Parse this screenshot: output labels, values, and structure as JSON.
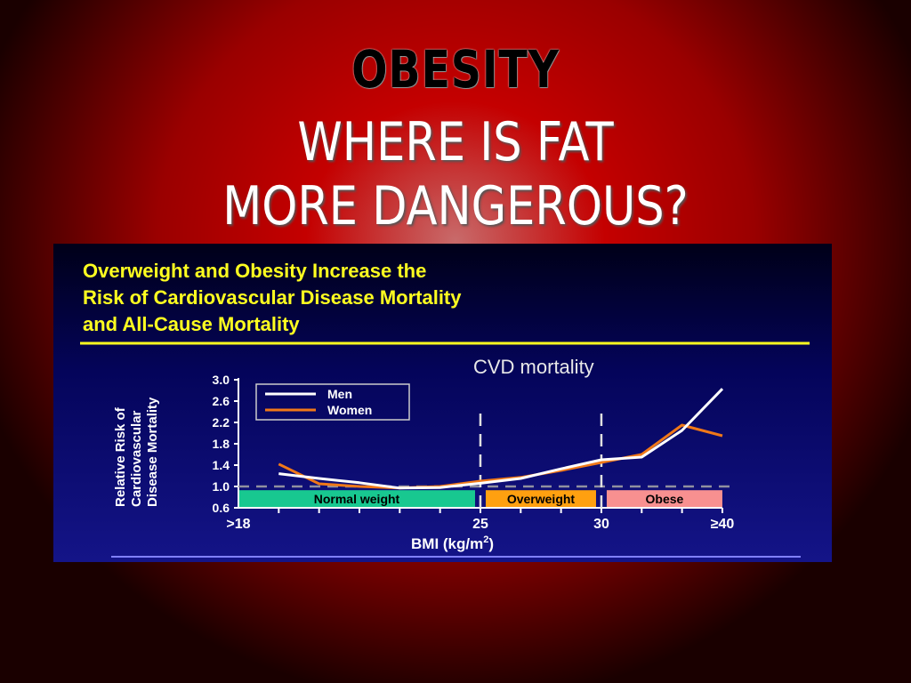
{
  "slide": {
    "title": "OBESITY",
    "subtitle_line1": "WHERE IS FAT",
    "subtitle_line2": "MORE DANGEROUS?"
  },
  "chart_data": {
    "type": "line",
    "title_lines": [
      "Overweight and Obesity Increase the",
      "Risk of Cardiovascular Disease Mortality",
      "and All-Cause Mortality"
    ],
    "subtitle": "CVD mortality",
    "xlabel": "BMI (kg/m",
    "xlabel_sup": "2",
    "xlabel_close": ")",
    "ylabel_lines": [
      "Relative Risk of",
      "Cardiovascular",
      "Disease Mortality"
    ],
    "x_ticks": [
      {
        "bin": 0,
        "label": ">18"
      },
      {
        "bin": 6,
        "label": "25"
      },
      {
        "bin": 9,
        "label": "30"
      },
      {
        "bin": 12,
        "label": "≥40"
      }
    ],
    "y_ticks": [
      "3.0",
      "2.6",
      "2.2",
      "1.8",
      "1.4",
      "1.0",
      "0.6"
    ],
    "ylim": [
      0.6,
      3.0
    ],
    "x_bins": [
      1,
      2,
      3,
      4,
      5,
      6,
      7,
      8,
      9,
      10,
      11,
      12
    ],
    "reference_line": 1.0,
    "category_bands": [
      {
        "label": "Normal weight",
        "from_bin": 0,
        "to_bin": 6,
        "color": "#18c890"
      },
      {
        "label": "Overweight",
        "from_bin": 6,
        "to_bin": 9,
        "color": "#ffa010"
      },
      {
        "label": "Obese",
        "from_bin": 9,
        "to_bin": 12,
        "color": "#f89090"
      }
    ],
    "divider_bins": [
      6,
      9
    ],
    "legend_position": "top-left",
    "series": [
      {
        "name": "Men",
        "color": "#ffffff",
        "values": [
          1.24,
          1.15,
          1.07,
          0.97,
          0.98,
          1.06,
          1.15,
          1.33,
          1.5,
          1.55,
          2.05,
          2.83
        ]
      },
      {
        "name": "Women",
        "color": "#f07818",
        "values": [
          1.42,
          1.05,
          1.0,
          0.97,
          1.0,
          1.1,
          1.17,
          1.3,
          1.45,
          1.6,
          2.15,
          1.95
        ]
      }
    ]
  }
}
